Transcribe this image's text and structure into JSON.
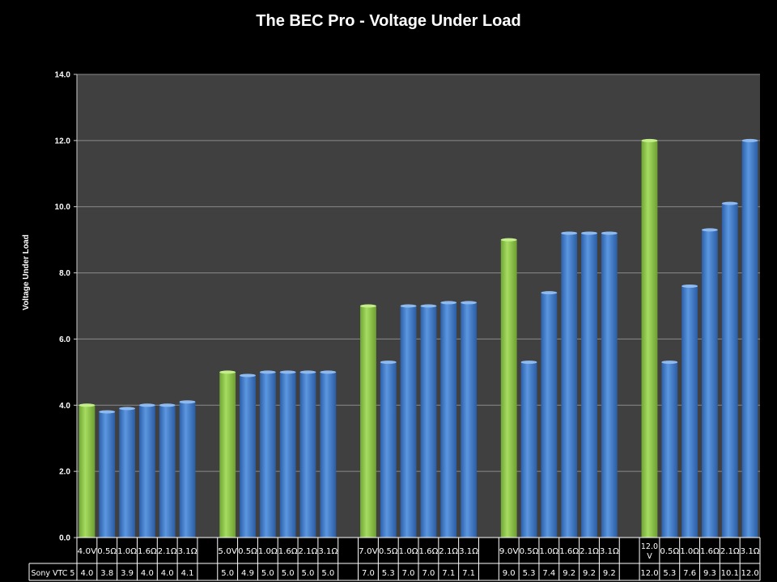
{
  "chart_data": {
    "type": "bar",
    "title": "The BEC Pro - Voltage Under Load",
    "ylabel": "Voltage Under Load",
    "xlabel": "",
    "ylim": [
      0,
      14
    ],
    "yticks": [
      "0.0",
      "2.0",
      "4.0",
      "6.0",
      "8.0",
      "10.0",
      "12.0",
      "14.0"
    ],
    "grid": true,
    "categories": [
      "4.0V",
      "0.5Ω",
      "1.0Ω",
      "1.6Ω",
      "2.1Ω",
      "3.1Ω",
      "",
      "5.0V",
      "0.5Ω",
      "1.0Ω",
      "1.6Ω",
      "2.1Ω",
      "3.1Ω",
      "",
      "7.0V",
      "0.5Ω",
      "1.0Ω",
      "1.6Ω",
      "2.1Ω",
      "3.1Ω",
      "",
      "9.0V",
      "0.5Ω",
      "1.0Ω",
      "1.6Ω",
      "2.1Ω",
      "3.1Ω",
      "",
      "12.0 V",
      "0.5Ω",
      "1.0Ω",
      "1.6Ω",
      "2.1Ω",
      "3.1Ω"
    ],
    "series": [
      {
        "name": "Sony VTC 5",
        "values": [
          4.0,
          3.8,
          3.9,
          4.0,
          4.0,
          4.1,
          null,
          5.0,
          4.9,
          5.0,
          5.0,
          5.0,
          5.0,
          null,
          7.0,
          5.3,
          7.0,
          7.0,
          7.1,
          7.1,
          null,
          9.0,
          5.3,
          7.4,
          9.2,
          9.2,
          9.2,
          null,
          12.0,
          5.3,
          7.6,
          9.3,
          10.1,
          12.0
        ],
        "labels": [
          "4.0",
          "3.8",
          "3.9",
          "4.0",
          "4.0",
          "4.1",
          "",
          "5.0",
          "4.9",
          "5.0",
          "5.0",
          "5.0",
          "5.0",
          "",
          "7.0",
          "5.3",
          "7.0",
          "7.0",
          "7.1",
          "7.1",
          "",
          "9.0",
          "5.3",
          "7.4",
          "9.2",
          "9.2",
          "9.2",
          "",
          "12.0",
          "5.3",
          "7.6",
          "9.3",
          "10.1",
          "12.0"
        ]
      }
    ],
    "highlight_indices": [
      0,
      7,
      14,
      21,
      28
    ],
    "colors": {
      "no_load": "#92d050",
      "load": "#4a86d4",
      "plot_bg": "#404040",
      "grid": "#8a8a8a"
    },
    "legend": "data-table-bottom"
  }
}
